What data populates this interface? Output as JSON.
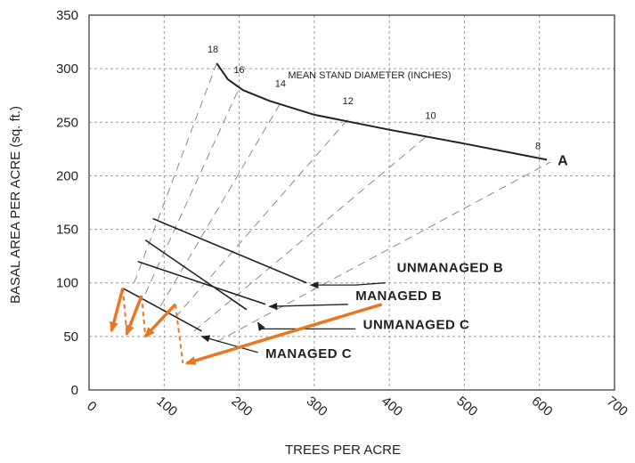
{
  "chart_data": {
    "type": "line",
    "title": "",
    "xlabel": "TREES PER ACRE",
    "ylabel": "BASAL AREA PER ACRE (sq. ft.)",
    "xlim": [
      0,
      700
    ],
    "ylim": [
      0,
      350
    ],
    "xticks": [
      0,
      100,
      200,
      300,
      400,
      500,
      600,
      700
    ],
    "yticks": [
      0,
      50,
      100,
      150,
      200,
      250,
      300,
      350
    ],
    "grid": true,
    "curve_A": {
      "label": "A",
      "points": [
        [
          170,
          305
        ],
        [
          185,
          290
        ],
        [
          205,
          280
        ],
        [
          240,
          270
        ],
        [
          300,
          257
        ],
        [
          400,
          243
        ],
        [
          500,
          230
        ],
        [
          610,
          215
        ]
      ]
    },
    "diameter_label": "MEAN STAND DIAMETER (INCHES)",
    "diameter_lines": [
      {
        "label": "18",
        "label_at": [
          165,
          315
        ],
        "from": [
          60,
          100
        ],
        "to": [
          170,
          305
        ]
      },
      {
        "label": "16",
        "label_at": [
          200,
          296
        ],
        "from": [
          75,
          90
        ],
        "to": [
          200,
          282
        ]
      },
      {
        "label": "14",
        "label_at": [
          255,
          283
        ],
        "from": [
          95,
          78
        ],
        "to": [
          255,
          268
        ]
      },
      {
        "label": "12",
        "label_at": [
          345,
          267
        ],
        "from": [
          115,
          68
        ],
        "to": [
          345,
          253
        ]
      },
      {
        "label": "10",
        "label_at": [
          455,
          253
        ],
        "from": [
          140,
          55
        ],
        "to": [
          455,
          240
        ]
      },
      {
        "label": "8",
        "label_at": [
          598,
          225
        ],
        "from": [
          170,
          45
        ],
        "to": [
          615,
          213
        ]
      }
    ],
    "series": [
      {
        "name": "UNMANAGED B",
        "points": [
          [
            85,
            160
          ],
          [
            290,
            100
          ]
        ],
        "label_anchor": [
          410,
          110
        ],
        "pointer": [
          [
            395,
            100
          ],
          [
            355,
            98
          ],
          [
            295,
            98
          ]
        ]
      },
      {
        "name": "MANAGED B",
        "points": [
          [
            65,
            120
          ],
          [
            235,
            80
          ]
        ],
        "label_anchor": [
          355,
          84
        ],
        "pointer": [
          [
            345,
            80
          ],
          [
            240,
            78
          ]
        ]
      },
      {
        "name": "UNMANAGED C",
        "points": [
          [
            75,
            140
          ],
          [
            210,
            75
          ]
        ],
        "label_anchor": [
          365,
          57
        ],
        "pointer": [
          [
            355,
            57
          ],
          [
            230,
            57
          ],
          [
            225,
            63
          ]
        ]
      },
      {
        "name": "MANAGED C",
        "points": [
          [
            45,
            95
          ],
          [
            150,
            55
          ]
        ],
        "label_anchor": [
          235,
          30
        ],
        "pointer": [
          [
            225,
            35
          ],
          [
            150,
            50
          ]
        ]
      }
    ],
    "orange_arrows": [
      {
        "from": [
          45,
          95
        ],
        "to": [
          30,
          55
        ]
      },
      {
        "from": [
          70,
          88
        ],
        "to": [
          50,
          52
        ]
      },
      {
        "from": [
          115,
          80
        ],
        "to": [
          75,
          50
        ]
      },
      {
        "from": [
          390,
          80
        ],
        "to": [
          130,
          25
        ]
      }
    ],
    "orange_dashes": [
      [
        [
          45,
          95
        ],
        [
          50,
          55
        ]
      ],
      [
        [
          70,
          88
        ],
        [
          75,
          50
        ]
      ],
      [
        [
          115,
          80
        ],
        [
          125,
          25
        ]
      ]
    ],
    "colors": {
      "line": "#222222",
      "grid": "#9a9a9a",
      "orange": "#e87722"
    }
  }
}
